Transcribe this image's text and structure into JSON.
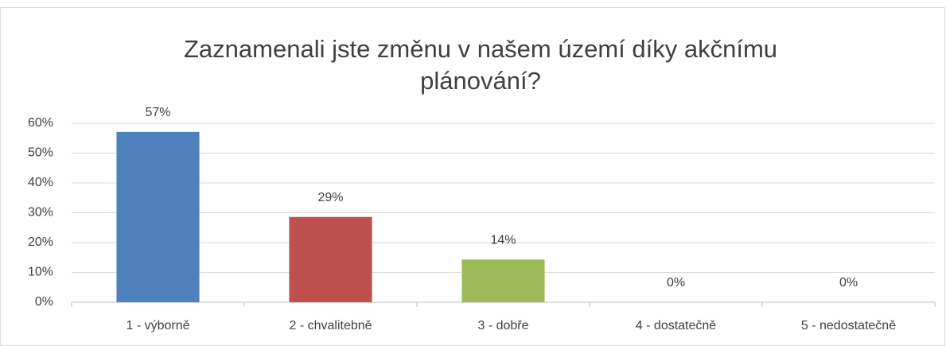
{
  "chart_data": {
    "type": "bar",
    "title": "Zaznamenali jste změnu v našem území díky akčnímu plánování?",
    "categories": [
      "1 - výborně",
      "2 - chvalitebně",
      "3 - dobře",
      "4 - dostatečně",
      "5 - nedostatečně"
    ],
    "values": [
      57.1,
      28.6,
      14.3,
      0,
      0
    ],
    "value_labels": [
      "57%",
      "29%",
      "14%",
      "0%",
      "0%"
    ],
    "colors": [
      "#4f81bd",
      "#c0504d",
      "#9bbb59",
      "#8064a2",
      "#4bacc6"
    ],
    "ylim": [
      0,
      60
    ],
    "yticks": [
      {
        "value": 0,
        "label": "0%"
      },
      {
        "value": 10,
        "label": "10%"
      },
      {
        "value": 20,
        "label": "20%"
      },
      {
        "value": 30,
        "label": "30%"
      },
      {
        "value": 40,
        "label": "40%"
      },
      {
        "value": 50,
        "label": "50%"
      },
      {
        "value": 60,
        "label": "60%"
      }
    ],
    "grid": true
  }
}
